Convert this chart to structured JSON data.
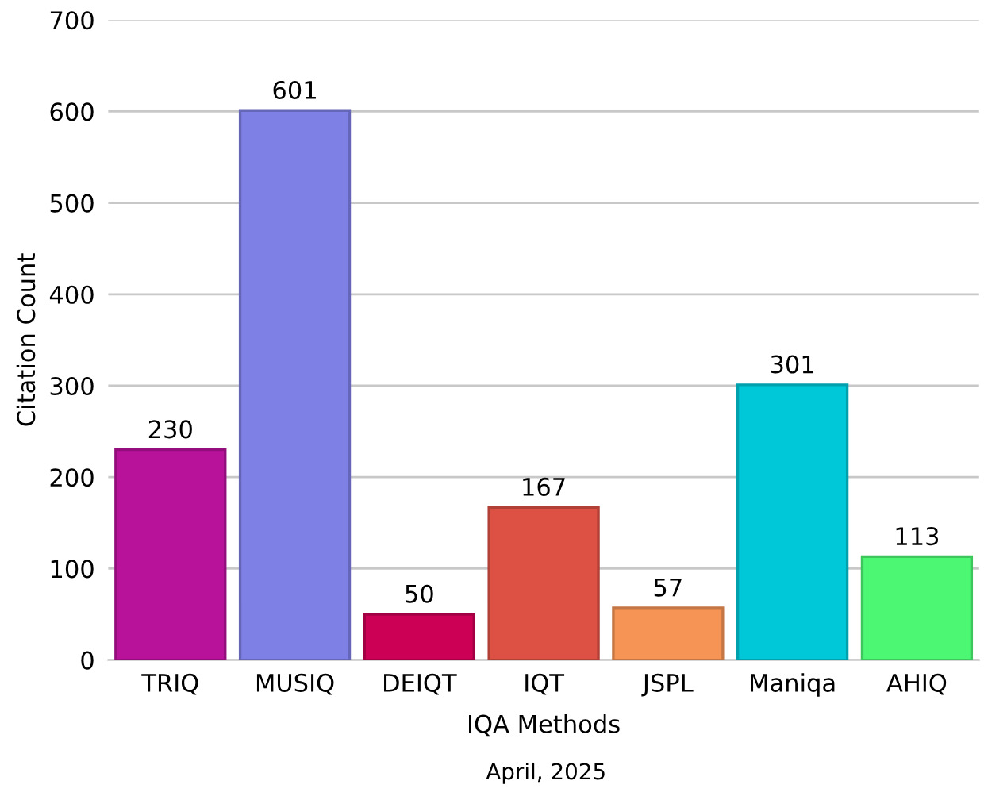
{
  "chart_data": {
    "type": "bar",
    "categories": [
      "TRIQ",
      "MUSIQ",
      "DEIQT",
      "IQT",
      "JSPL",
      "Maniqa",
      "AHIQ"
    ],
    "values": [
      230,
      601,
      50,
      167,
      57,
      301,
      113
    ],
    "colors": [
      "#b8129b",
      "#7f80e6",
      "#cc0055",
      "#dd5044",
      "#f59455",
      "#00c8d8",
      "#4cf773"
    ],
    "xlabel": "IQA Methods",
    "ylabel": "Citation Count",
    "annotations": [
      "April, 2025"
    ],
    "ylim": [
      0,
      700
    ],
    "yticks": [
      0,
      100,
      200,
      300,
      400,
      500,
      600,
      700
    ],
    "grid": "y",
    "data_labels": true
  }
}
